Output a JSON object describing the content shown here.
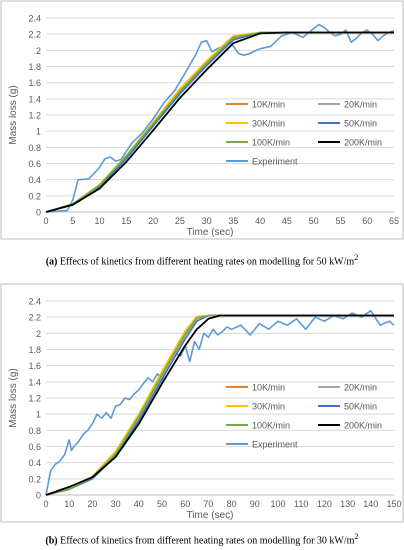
{
  "captions": [
    {
      "tag": "(a)",
      "text": "Effects of kinetics from different heating rates on modelling for 50 kW/m",
      "sup": "2"
    },
    {
      "tag": "(b)",
      "text": "Effects of kinetics from different heating rates on modelling for 30 kW/m",
      "sup": "2"
    }
  ],
  "colors": {
    "k10": "#ed7d31",
    "k20": "#a5a5a5",
    "k30": "#ffc000",
    "k50": "#4472c4",
    "k100": "#70ad47",
    "k200": "#000000",
    "experiment": "#5b9bd5"
  },
  "chart_data": [
    {
      "type": "line",
      "xlabel": "Time (sec)",
      "ylabel": "Mass loss (g)",
      "xlim": [
        0,
        65
      ],
      "ylim": [
        0,
        2.4
      ],
      "xticks": [
        0,
        5,
        10,
        15,
        20,
        25,
        30,
        35,
        40,
        45,
        50,
        55,
        60,
        65
      ],
      "yticks": [
        "0",
        "0.2",
        "0.4",
        "0.6",
        "0.8",
        "1",
        "1.2",
        "1.4",
        "1.6",
        "1.8",
        "2",
        "2.2",
        "2.4"
      ],
      "grid": "horizontal",
      "legend_position": "inside-right",
      "series": [
        {
          "name": "10K/min",
          "x": [
            0,
            5,
            10,
            15,
            20,
            25,
            30,
            35,
            40,
            45,
            50,
            55,
            60,
            65
          ],
          "y": [
            0,
            0.09,
            0.33,
            0.69,
            1.1,
            1.5,
            1.85,
            2.16,
            2.22,
            2.22,
            2.22,
            2.22,
            2.22,
            2.22
          ]
        },
        {
          "name": "20K/min",
          "x": [
            0,
            5,
            10,
            15,
            20,
            25,
            30,
            35,
            40,
            45,
            50,
            55,
            60,
            65
          ],
          "y": [
            0,
            0.09,
            0.32,
            0.68,
            1.08,
            1.48,
            1.83,
            2.15,
            2.22,
            2.22,
            2.22,
            2.22,
            2.22,
            2.22
          ]
        },
        {
          "name": "30K/min",
          "x": [
            0,
            5,
            10,
            15,
            20,
            25,
            30,
            35,
            40,
            45,
            50,
            55,
            60,
            65
          ],
          "y": [
            0,
            0.1,
            0.34,
            0.7,
            1.11,
            1.52,
            1.87,
            2.18,
            2.22,
            2.22,
            2.22,
            2.22,
            2.22,
            2.22
          ]
        },
        {
          "name": "50K/min",
          "x": [
            0,
            5,
            10,
            15,
            20,
            25,
            30,
            35,
            40,
            45,
            50,
            55,
            60,
            65
          ],
          "y": [
            0,
            0.09,
            0.31,
            0.66,
            1.06,
            1.46,
            1.81,
            2.13,
            2.22,
            2.22,
            2.22,
            2.22,
            2.22,
            2.22
          ]
        },
        {
          "name": "100K/min",
          "x": [
            0,
            5,
            10,
            15,
            20,
            25,
            30,
            35,
            40,
            45,
            50,
            55,
            60,
            65
          ],
          "y": [
            0,
            0.1,
            0.33,
            0.69,
            1.09,
            1.49,
            1.84,
            2.16,
            2.22,
            2.22,
            2.22,
            2.22,
            2.22,
            2.22
          ]
        },
        {
          "name": "200K/min",
          "x": [
            0,
            5,
            10,
            15,
            20,
            25,
            30,
            35,
            40,
            45,
            50,
            55,
            60,
            65
          ],
          "y": [
            0,
            0.09,
            0.29,
            0.62,
            1.01,
            1.41,
            1.76,
            2.09,
            2.21,
            2.22,
            2.22,
            2.22,
            2.22,
            2.22
          ]
        },
        {
          "name": "Experiment",
          "x": [
            0,
            2,
            4,
            5,
            6,
            8,
            10,
            11,
            12,
            13,
            14,
            15,
            16,
            18,
            20,
            22,
            24,
            26,
            28,
            29,
            30,
            31,
            32,
            33,
            34,
            35,
            36,
            37,
            38,
            40,
            42,
            44,
            46,
            48,
            50,
            51,
            52,
            53,
            54,
            55,
            56,
            57,
            58,
            59,
            60,
            61,
            62,
            63,
            64,
            65
          ],
          "y": [
            0,
            0.01,
            0.02,
            0.15,
            0.4,
            0.41,
            0.55,
            0.66,
            0.68,
            0.63,
            0.65,
            0.75,
            0.85,
            0.98,
            1.15,
            1.35,
            1.5,
            1.72,
            1.95,
            2.1,
            2.12,
            1.98,
            2.02,
            2.05,
            2.12,
            2.05,
            1.96,
            1.94,
            1.96,
            2.02,
            2.05,
            2.18,
            2.22,
            2.16,
            2.27,
            2.32,
            2.28,
            2.22,
            2.18,
            2.2,
            2.25,
            2.1,
            2.15,
            2.22,
            2.25,
            2.2,
            2.12,
            2.18,
            2.22,
            2.24
          ]
        }
      ]
    },
    {
      "type": "line",
      "xlabel": "Time (sec)",
      "ylabel": "Mass loss (g)",
      "xlim": [
        0,
        150
      ],
      "ylim": [
        0,
        2.4
      ],
      "xticks": [
        0,
        10,
        20,
        30,
        40,
        50,
        60,
        70,
        80,
        90,
        100,
        110,
        120,
        130,
        140,
        150
      ],
      "yticks": [
        "0",
        "0.2",
        "0.4",
        "0.6",
        "0.8",
        "1",
        "1.2",
        "1.4",
        "1.6",
        "1.8",
        "2",
        "2.2",
        "2.4"
      ],
      "grid": "horizontal",
      "legend_position": "inside-right",
      "series": [
        {
          "name": "10K/min",
          "x": [
            0,
            10,
            20,
            30,
            40,
            50,
            60,
            65,
            70,
            80,
            90,
            100,
            110,
            120,
            130,
            140,
            150
          ],
          "y": [
            0,
            0.07,
            0.22,
            0.52,
            0.98,
            1.5,
            2.0,
            2.2,
            2.22,
            2.22,
            2.22,
            2.22,
            2.22,
            2.22,
            2.22,
            2.22,
            2.22
          ]
        },
        {
          "name": "20K/min",
          "x": [
            0,
            10,
            20,
            30,
            40,
            50,
            60,
            65,
            70,
            80,
            90,
            100,
            110,
            120,
            130,
            140,
            150
          ],
          "y": [
            0,
            0.07,
            0.21,
            0.5,
            0.95,
            1.47,
            1.97,
            2.18,
            2.22,
            2.22,
            2.22,
            2.22,
            2.22,
            2.22,
            2.22,
            2.22,
            2.22
          ]
        },
        {
          "name": "30K/min",
          "x": [
            0,
            10,
            20,
            30,
            40,
            50,
            60,
            65,
            70,
            80,
            90,
            100,
            110,
            120,
            130,
            140,
            150
          ],
          "y": [
            0,
            0.08,
            0.23,
            0.54,
            1.0,
            1.53,
            2.03,
            2.21,
            2.22,
            2.22,
            2.22,
            2.22,
            2.22,
            2.22,
            2.22,
            2.22,
            2.22
          ]
        },
        {
          "name": "50K/min",
          "x": [
            0,
            10,
            20,
            30,
            40,
            50,
            60,
            65,
            70,
            80,
            90,
            100,
            110,
            120,
            130,
            140,
            150
          ],
          "y": [
            0,
            0.07,
            0.2,
            0.48,
            0.92,
            1.43,
            1.93,
            2.15,
            2.22,
            2.22,
            2.22,
            2.22,
            2.22,
            2.22,
            2.22,
            2.22,
            2.22
          ]
        },
        {
          "name": "100K/min",
          "x": [
            0,
            10,
            20,
            30,
            40,
            50,
            60,
            65,
            70,
            80,
            90,
            100,
            110,
            120,
            130,
            140,
            150
          ],
          "y": [
            0,
            0.07,
            0.22,
            0.51,
            0.97,
            1.49,
            1.99,
            2.19,
            2.22,
            2.22,
            2.22,
            2.22,
            2.22,
            2.22,
            2.22,
            2.22,
            2.22
          ]
        },
        {
          "name": "200K/min",
          "x": [
            0,
            10,
            20,
            30,
            40,
            50,
            60,
            65,
            70,
            75,
            80,
            90,
            100,
            110,
            120,
            130,
            140,
            150
          ],
          "y": [
            0,
            0.1,
            0.22,
            0.47,
            0.88,
            1.38,
            1.85,
            2.05,
            2.18,
            2.22,
            2.22,
            2.22,
            2.22,
            2.22,
            2.22,
            2.22,
            2.22,
            2.22
          ]
        },
        {
          "name": "Experiment",
          "x": [
            0,
            2,
            4,
            6,
            8,
            10,
            11,
            12,
            14,
            16,
            18,
            20,
            22,
            24,
            26,
            28,
            30,
            32,
            34,
            36,
            38,
            40,
            42,
            44,
            46,
            48,
            50,
            52,
            54,
            56,
            58,
            60,
            62,
            64,
            66,
            68,
            70,
            72,
            74,
            76,
            78,
            80,
            84,
            88,
            92,
            96,
            100,
            104,
            108,
            112,
            116,
            120,
            124,
            128,
            132,
            136,
            140,
            144,
            148,
            150
          ],
          "y": [
            0,
            0.3,
            0.38,
            0.42,
            0.5,
            0.68,
            0.55,
            0.6,
            0.66,
            0.75,
            0.8,
            0.88,
            1.0,
            0.95,
            1.02,
            0.95,
            1.1,
            1.12,
            1.2,
            1.18,
            1.25,
            1.3,
            1.38,
            1.45,
            1.4,
            1.5,
            1.42,
            1.55,
            1.7,
            1.75,
            1.72,
            1.85,
            1.65,
            1.9,
            1.8,
            2.0,
            1.95,
            2.05,
            1.98,
            2.02,
            2.08,
            2.05,
            2.1,
            1.98,
            2.12,
            2.05,
            2.15,
            2.1,
            2.18,
            2.05,
            2.2,
            2.15,
            2.22,
            2.18,
            2.25,
            2.2,
            2.28,
            2.1,
            2.15,
            2.1
          ]
        }
      ]
    }
  ]
}
